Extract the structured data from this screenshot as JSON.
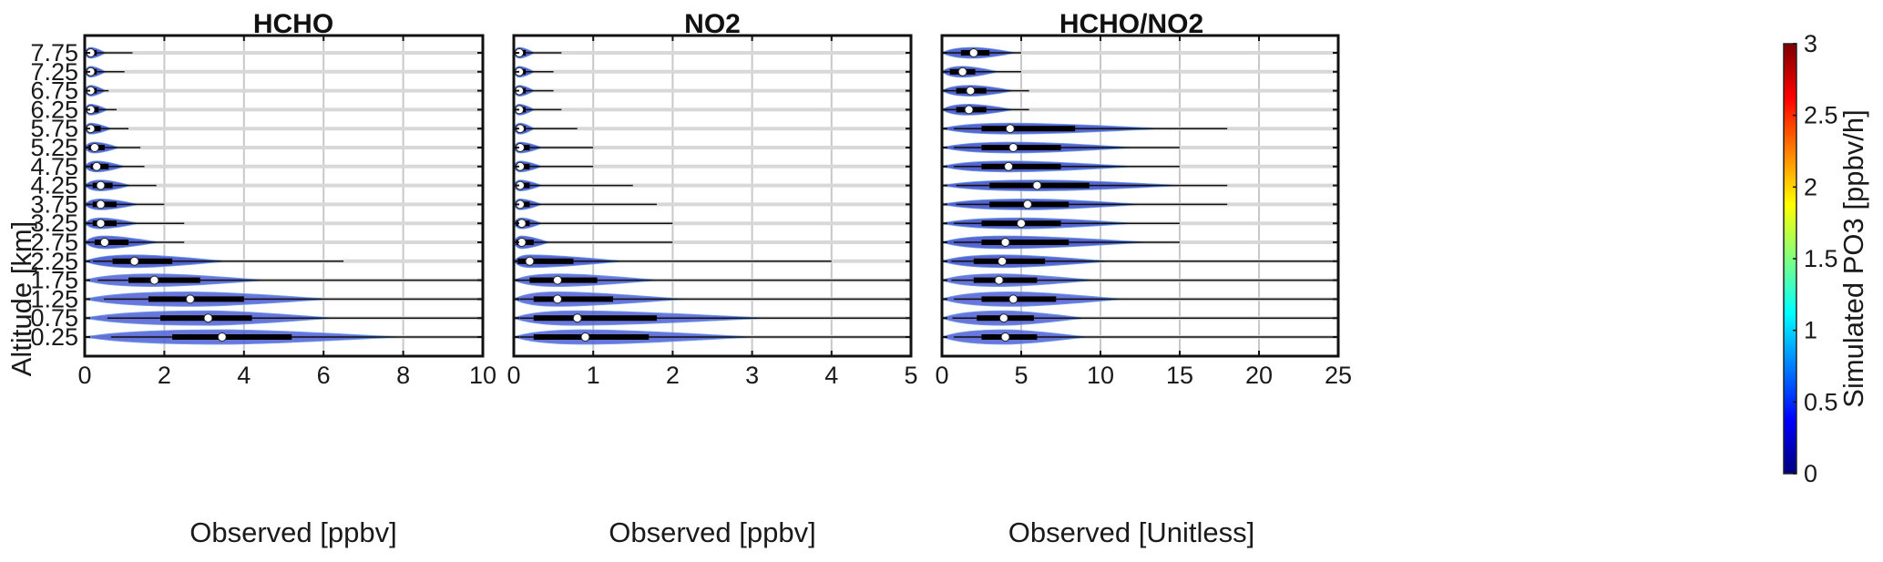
{
  "chart_data": [
    {
      "type": "violin",
      "title": "HCHO",
      "xlabel": "Observed [ppbv]",
      "ylabel": "Altitude [km]",
      "xlim": [
        0,
        10
      ],
      "xticks": [
        "0",
        "2",
        "4",
        "6",
        "8",
        "10"
      ],
      "grid": true,
      "medians": [
        3.45,
        3.1,
        2.65,
        1.75,
        1.25,
        0.5,
        0.4,
        0.4,
        0.4,
        0.3,
        0.25,
        0.15,
        0.15,
        0.15,
        0.15,
        0.15
      ],
      "iqr": [
        [
          2.2,
          5.2
        ],
        [
          1.9,
          4.2
        ],
        [
          1.6,
          4.0
        ],
        [
          1.1,
          2.9
        ],
        [
          0.7,
          2.2
        ],
        [
          0.25,
          1.1
        ],
        [
          0.2,
          0.8
        ],
        [
          0.2,
          0.8
        ],
        [
          0.2,
          0.7
        ],
        [
          0.15,
          0.6
        ],
        [
          0.1,
          0.5
        ],
        [
          0.1,
          0.4
        ],
        [
          0.1,
          0.35
        ],
        [
          0.05,
          0.3
        ],
        [
          0.05,
          0.3
        ],
        [
          0.05,
          0.3
        ]
      ],
      "whisker_max": [
        10,
        10,
        10,
        10,
        6.5,
        2.5,
        2.5,
        2.0,
        1.8,
        1.5,
        1.4,
        1.1,
        0.8,
        0.6,
        1.0,
        1.2
      ]
    },
    {
      "type": "violin",
      "title": "NO2",
      "xlabel": "Observed [ppbv]",
      "xlim": [
        0,
        5
      ],
      "xticks": [
        "0",
        "1",
        "2",
        "3",
        "4",
        "5"
      ],
      "grid": true,
      "medians": [
        0.9,
        0.8,
        0.55,
        0.55,
        0.2,
        0.1,
        0.1,
        0.08,
        0.08,
        0.08,
        0.08,
        0.08,
        0.07,
        0.07,
        0.07,
        0.07
      ],
      "iqr": [
        [
          0.25,
          1.7
        ],
        [
          0.25,
          1.8
        ],
        [
          0.25,
          1.25
        ],
        [
          0.2,
          1.05
        ],
        [
          0.05,
          0.75
        ],
        [
          0.03,
          0.25
        ],
        [
          0.03,
          0.2
        ],
        [
          0.03,
          0.2
        ],
        [
          0.03,
          0.2
        ],
        [
          0.03,
          0.2
        ],
        [
          0.03,
          0.2
        ],
        [
          0.03,
          0.15
        ],
        [
          0.03,
          0.15
        ],
        [
          0.03,
          0.15
        ],
        [
          0.03,
          0.15
        ],
        [
          0.03,
          0.15
        ]
      ],
      "whisker_max": [
        5,
        5,
        5,
        5,
        4.0,
        2.0,
        2.0,
        1.8,
        1.5,
        1.0,
        1.0,
        0.8,
        0.6,
        0.5,
        0.5,
        0.6
      ]
    },
    {
      "type": "violin",
      "title": "HCHO/NO2",
      "xlabel": "Observed [Unitless]",
      "xlim": [
        0,
        25
      ],
      "xticks": [
        "0",
        "5",
        "10",
        "15",
        "20",
        "25"
      ],
      "grid": true,
      "medians": [
        4.0,
        3.9,
        4.5,
        3.6,
        3.8,
        4.0,
        5.0,
        5.4,
        6.0,
        4.2,
        4.5,
        4.3,
        1.7,
        1.8,
        1.3,
        2.0
      ],
      "iqr": [
        [
          2.5,
          6.0
        ],
        [
          2.2,
          5.8
        ],
        [
          2.5,
          7.2
        ],
        [
          2.0,
          6.0
        ],
        [
          2.0,
          6.5
        ],
        [
          2.5,
          8.0
        ],
        [
          2.5,
          7.5
        ],
        [
          3.0,
          8.0
        ],
        [
          3.0,
          9.3
        ],
        [
          2.5,
          7.5
        ],
        [
          2.5,
          7.5
        ],
        [
          2.5,
          8.4
        ],
        [
          0.9,
          2.8
        ],
        [
          0.9,
          2.8
        ],
        [
          0.5,
          2.1
        ],
        [
          1.2,
          3.0
        ]
      ],
      "whisker_max": [
        25,
        25,
        25,
        25,
        25,
        15,
        15,
        18,
        18,
        15,
        15,
        18,
        5.5,
        5.5,
        5.0,
        5.0
      ]
    }
  ],
  "figure": {
    "titles": [
      "HCHO",
      "NO2",
      "HCHO/NO2"
    ],
    "ylabel": "Altitude [km]",
    "xlabels": [
      "Observed [ppbv]",
      "Observed [ppbv]",
      "Observed [Unitless]"
    ],
    "altitudes": [
      "0.25",
      "0.75",
      "1.25",
      "1.75",
      "2.25",
      "2.75",
      "3.25",
      "3.75",
      "4.25",
      "4.75",
      "5.25",
      "5.75",
      "6.25",
      "6.75",
      "7.25",
      "7.75"
    ]
  },
  "colorbar": {
    "label": "Simulated PO3 [ppbv/h]",
    "range": [
      0,
      3
    ],
    "ticks": [
      "0",
      "0.5",
      "1",
      "1.5",
      "2",
      "2.5",
      "3"
    ],
    "colormap": "jet",
    "colors": [
      "#00007f",
      "#0000ff",
      "#007fff",
      "#00ffff",
      "#7fff7f",
      "#ffff00",
      "#ff7f00",
      "#ff0000",
      "#7f0000"
    ]
  }
}
